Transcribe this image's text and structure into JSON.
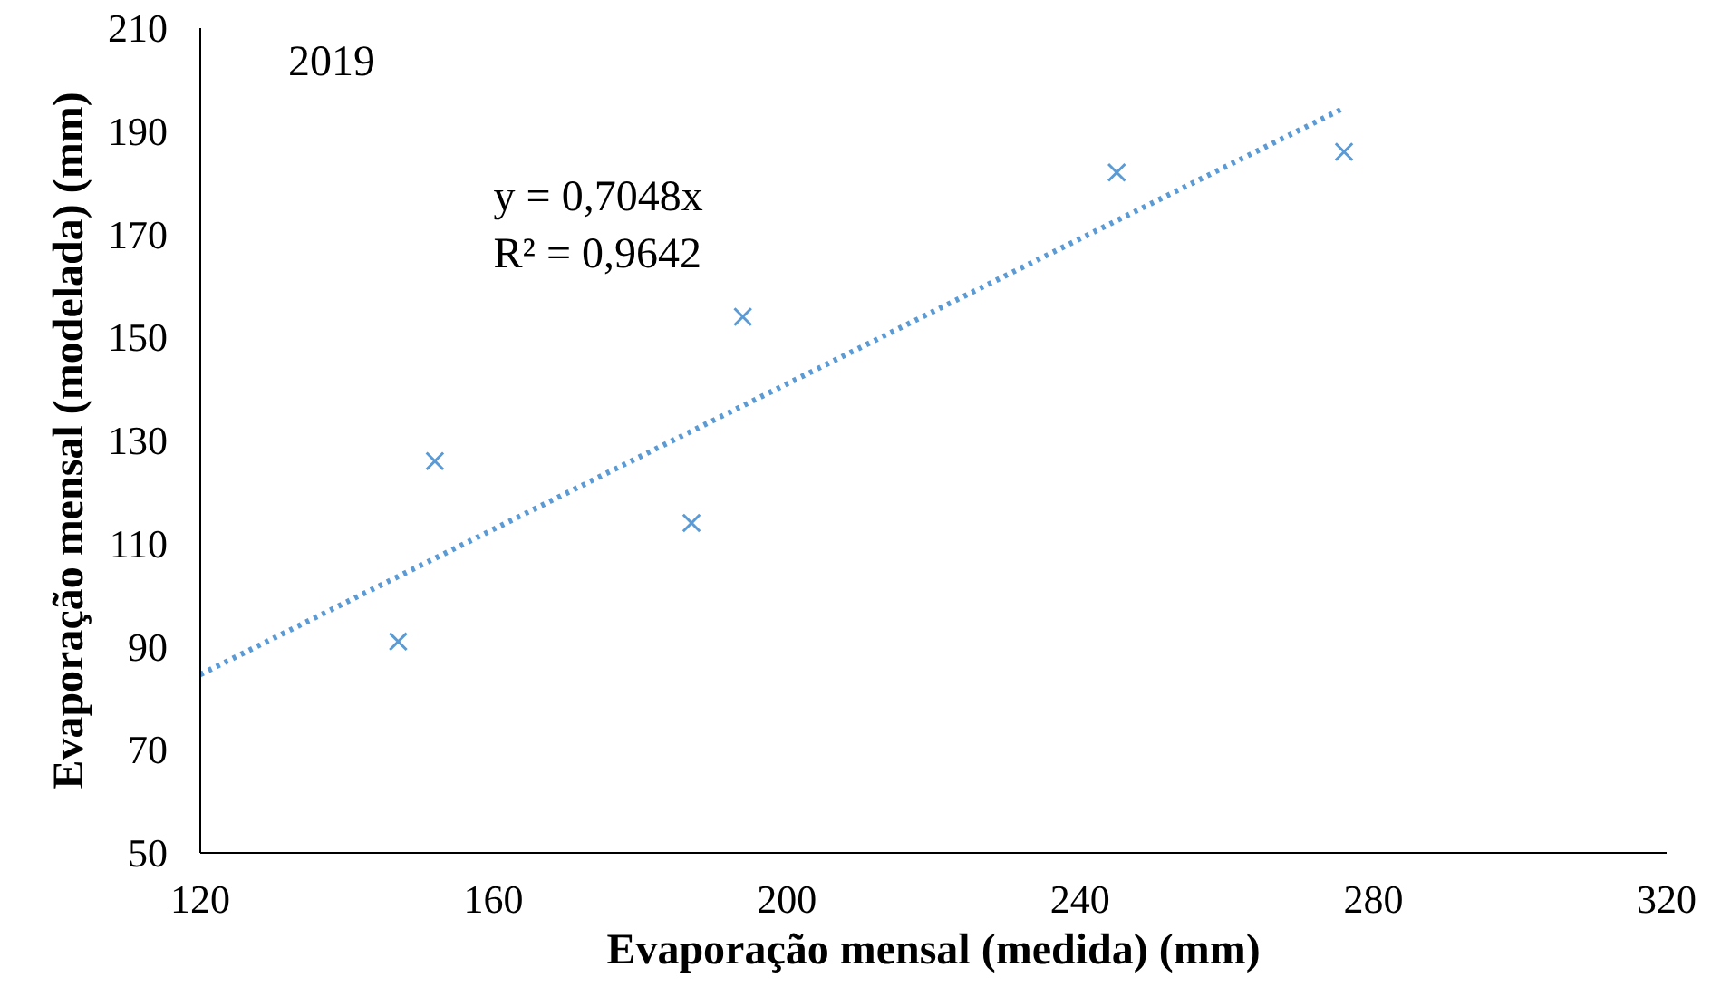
{
  "chart_data": {
    "type": "scatter",
    "xlabel": "Evaporação mensal (medida) (mm)",
    "ylabel": "Evaporação mensal (modelada) (mm)",
    "xlim": [
      120,
      320
    ],
    "xticks": [
      120,
      160,
      200,
      240,
      280,
      320
    ],
    "ylim": [
      50,
      210
    ],
    "yticks": [
      50,
      70,
      90,
      110,
      130,
      150,
      170,
      190,
      210
    ],
    "grid": false,
    "marker": "cross",
    "series": [
      {
        "color": "#5b9bd5",
        "x": [
          147,
          152,
          187,
          194,
          245,
          276
        ],
        "values": [
          91,
          126,
          114,
          154,
          182,
          186
        ]
      },
      {
        "type": "line",
        "line_style": "dotted",
        "marker": "none",
        "color": "#5b9bd5",
        "x": [
          120,
          276
        ],
        "values": [
          84.6,
          194.5
        ]
      }
    ],
    "annotations": [
      "2019",
      "y = 0,7048x",
      "R² = 0,9642"
    ]
  }
}
